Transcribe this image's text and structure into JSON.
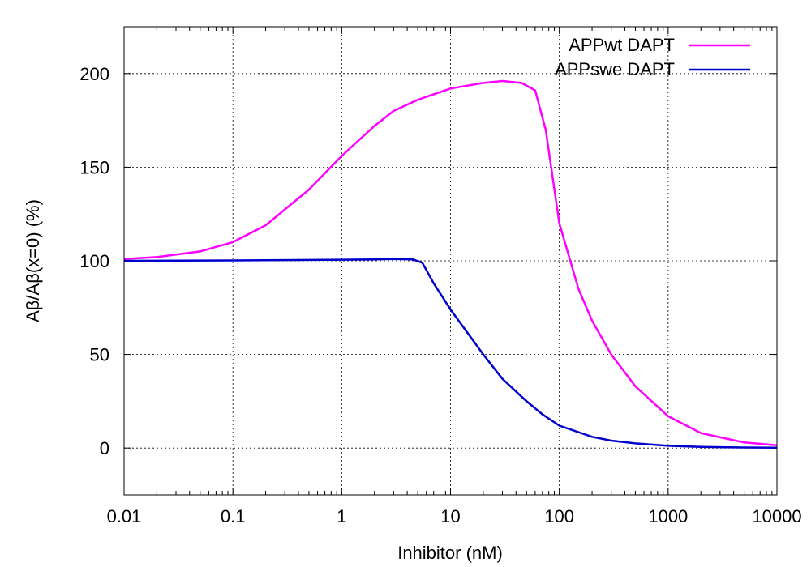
{
  "chart_data": {
    "type": "line",
    "title": "",
    "xlabel": "Inhibitor (nM)",
    "ylabel": "Aβ/Aβ(x=0) (%)",
    "xscale": "log",
    "xlim": [
      0.01,
      10000
    ],
    "ylim": [
      -25,
      225
    ],
    "xticks": [
      0.01,
      0.1,
      1,
      10,
      100,
      1000,
      10000
    ],
    "xtick_labels": [
      "0.01",
      "0.1",
      "1",
      "10",
      "100",
      "1000",
      "10000"
    ],
    "yticks": [
      0,
      50,
      100,
      150,
      200
    ],
    "ytick_labels": [
      "0",
      "50",
      "100",
      "150",
      "200"
    ],
    "grid": true,
    "legend_position": "top-right",
    "series": [
      {
        "name": "APPwt DAPT",
        "color": "#ff00ff",
        "points": [
          [
            0.01,
            101
          ],
          [
            0.02,
            102
          ],
          [
            0.05,
            105
          ],
          [
            0.1,
            110
          ],
          [
            0.2,
            119
          ],
          [
            0.5,
            138
          ],
          [
            1,
            156
          ],
          [
            2,
            172
          ],
          [
            3,
            180
          ],
          [
            5,
            186
          ],
          [
            10,
            192
          ],
          [
            20,
            195
          ],
          [
            30,
            196
          ],
          [
            45,
            195
          ],
          [
            60,
            191
          ],
          [
            75,
            170
          ],
          [
            100,
            120
          ],
          [
            150,
            85
          ],
          [
            200,
            68
          ],
          [
            300,
            50
          ],
          [
            500,
            33
          ],
          [
            1000,
            17
          ],
          [
            2000,
            8
          ],
          [
            5000,
            3
          ],
          [
            10000,
            1.5
          ]
        ]
      },
      {
        "name": "APPswe DAPT",
        "color": "#0000cd",
        "points": [
          [
            0.01,
            100
          ],
          [
            0.1,
            100.2
          ],
          [
            1,
            100.6
          ],
          [
            2,
            100.8
          ],
          [
            3,
            101
          ],
          [
            4.5,
            100.8
          ],
          [
            5.5,
            99
          ],
          [
            7,
            88
          ],
          [
            10,
            74
          ],
          [
            15,
            60
          ],
          [
            20,
            50
          ],
          [
            30,
            37
          ],
          [
            50,
            25
          ],
          [
            70,
            18
          ],
          [
            100,
            12
          ],
          [
            200,
            6
          ],
          [
            300,
            4
          ],
          [
            500,
            2.5
          ],
          [
            1000,
            1.2
          ],
          [
            2000,
            0.6
          ],
          [
            5000,
            0.3
          ],
          [
            10000,
            0.2
          ]
        ]
      }
    ]
  }
}
